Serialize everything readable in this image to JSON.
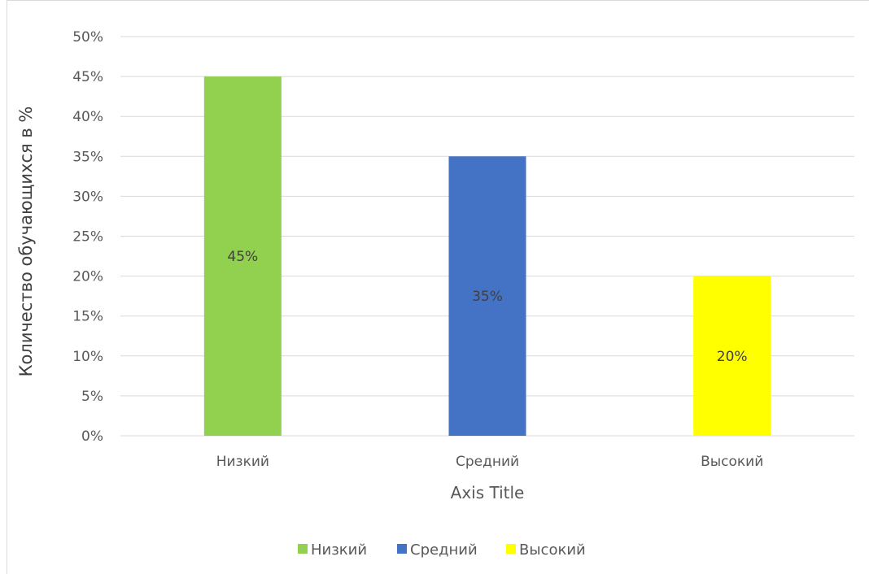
{
  "chart_data": {
    "type": "bar",
    "categories": [
      "Низкий",
      "Средний",
      "Высокий"
    ],
    "values": [
      45,
      35,
      20
    ],
    "data_labels": [
      "45%",
      "35%",
      "20%"
    ],
    "colors": [
      "#92d050",
      "#4472c4",
      "#ffff00"
    ],
    "title": "",
    "xlabel": "Axis Title",
    "ylabel": "Количество обучающихся в %",
    "ylim": [
      0,
      50
    ],
    "y_ticks": [
      "0%",
      "5%",
      "10%",
      "15%",
      "20%",
      "25%",
      "30%",
      "35%",
      "40%",
      "45%",
      "50%"
    ],
    "grid": true,
    "legend": {
      "position": "bottom",
      "entries": [
        "Низкий",
        "Средний",
        "Высокий"
      ]
    }
  }
}
